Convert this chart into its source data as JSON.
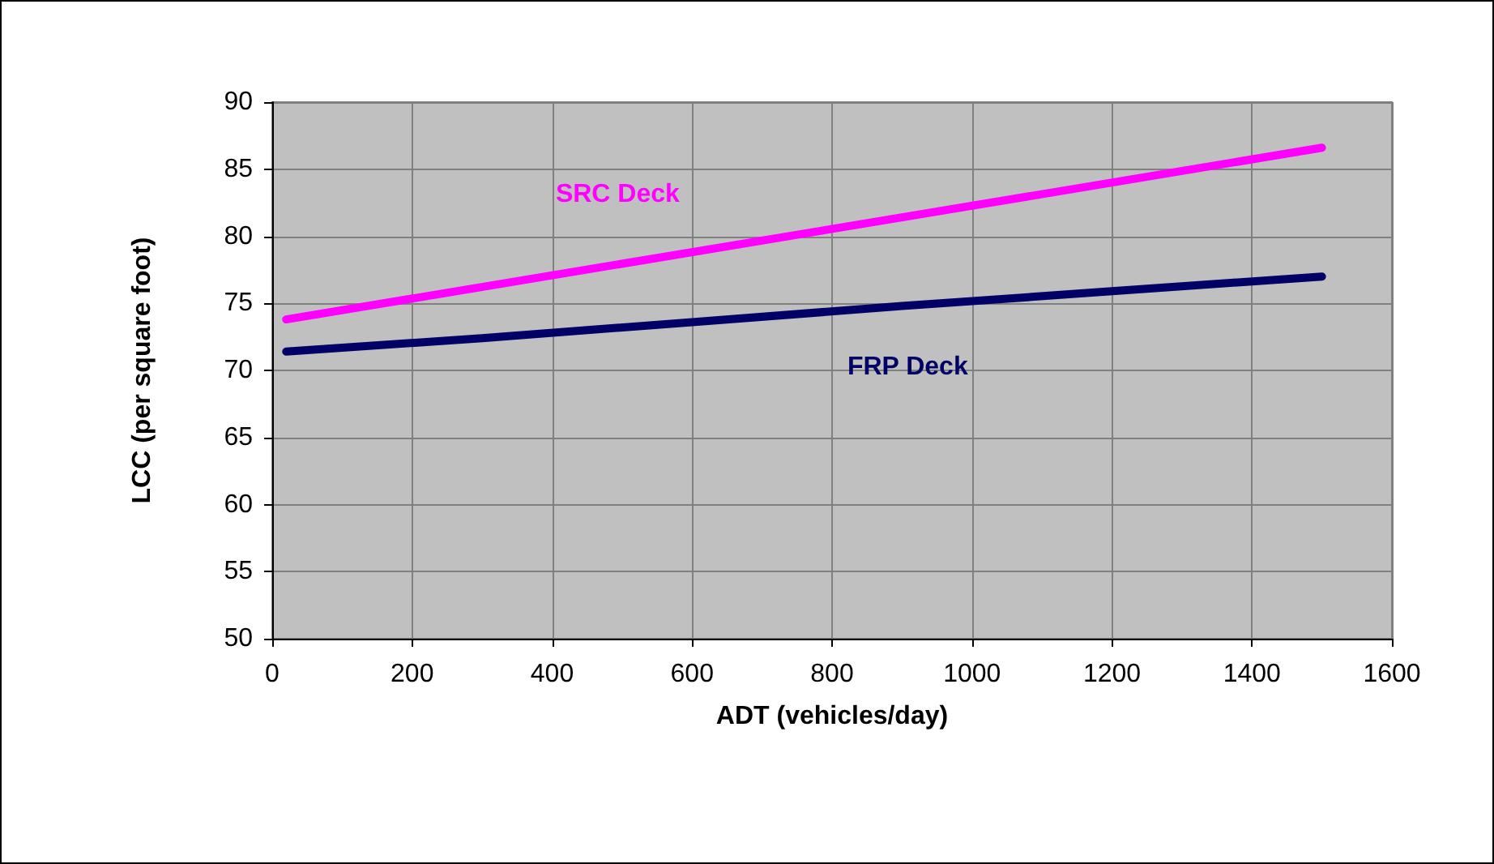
{
  "chart_data": {
    "type": "line",
    "xlabel": "ADT (vehicles/day)",
    "ylabel": "LCC (per square foot)",
    "series": [
      {
        "name": "SRC Deck",
        "color": "#ff00ff",
        "x": [
          20,
          1500
        ],
        "values": [
          73.8,
          86.6
        ]
      },
      {
        "name": "FRP Deck",
        "color": "#000066",
        "x": [
          20,
          300,
          600,
          900,
          1200,
          1500
        ],
        "values": [
          71.4,
          72.4,
          73.6,
          74.8,
          75.9,
          77.0
        ]
      }
    ],
    "xlim": [
      0,
      1600
    ],
    "xticks": [
      0,
      200,
      400,
      600,
      800,
      1000,
      1200,
      1400,
      1600
    ],
    "ylim": [
      50,
      90
    ],
    "yticks": [
      50,
      55,
      60,
      65,
      70,
      75,
      80,
      85,
      90
    ],
    "grid": true,
    "marker": "none",
    "line_style": "solid"
  }
}
